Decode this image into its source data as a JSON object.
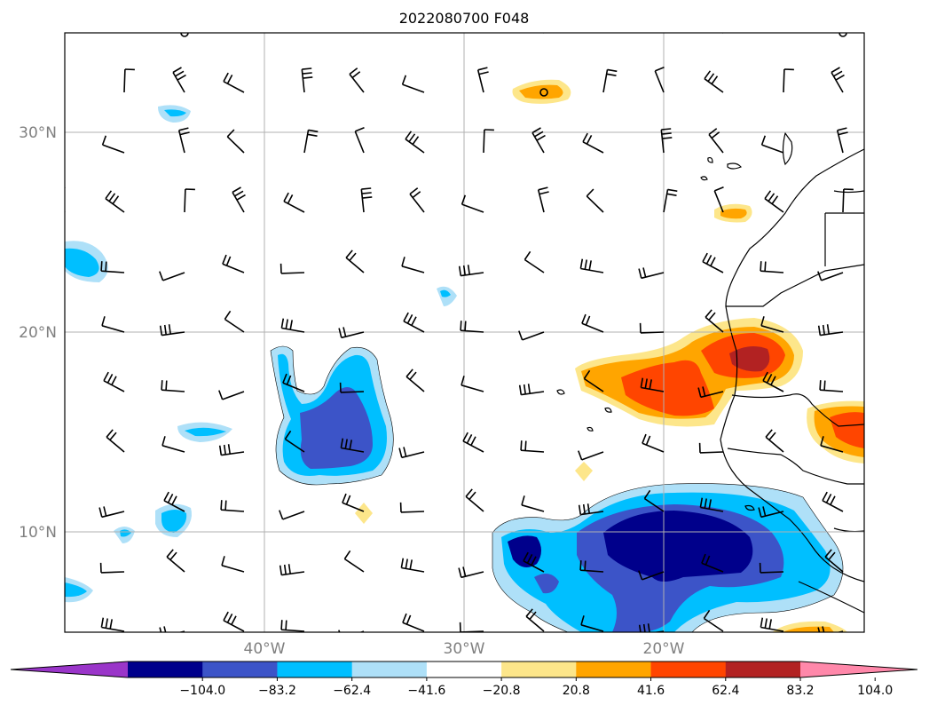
{
  "title": "2022080700 F048",
  "lat_labels": [
    "30°N",
    "20°N",
    "10°N"
  ],
  "lon_labels": [
    "40°W",
    "30°W",
    "20°W"
  ],
  "colorbar": {
    "levels": [
      "−104.0",
      "−83.2",
      "−62.4",
      "−41.6",
      "−20.8",
      "20.8",
      "41.6",
      "62.4",
      "83.2",
      "104.0"
    ],
    "colors": [
      "#9a35c9",
      "#00008b",
      "#3c54c8",
      "#00bfff",
      "#aee0f8",
      "#ffffff",
      "#fde68a",
      "#ffa500",
      "#ff4500",
      "#b22222",
      "#ff88aa"
    ]
  },
  "map": {
    "region": "Tropical North Atlantic / West Africa",
    "lon_range": [
      "-48",
      "-8"
    ],
    "lat_range": [
      "5",
      "35"
    ],
    "field": "filled contours with wind barbs"
  }
}
